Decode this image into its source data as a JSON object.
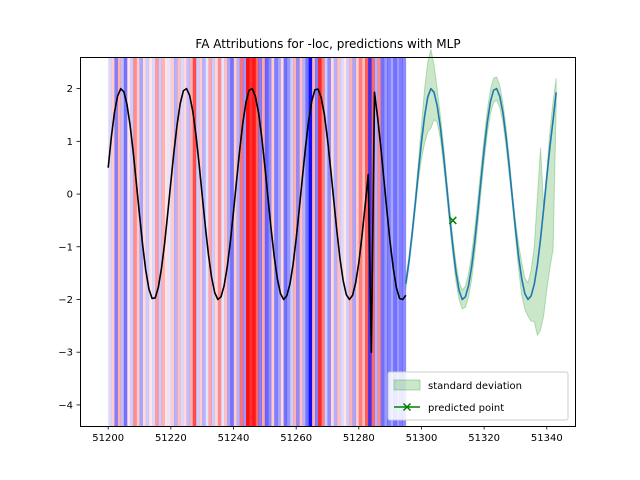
{
  "colors": {
    "attribution_positive": "#ff0000",
    "attribution_negative": "#0000ff",
    "signal": "#000000",
    "prediction": "#1f77b4",
    "std_band": "#2ca02c",
    "predicted_point": "#008000"
  },
  "chart_data": {
    "type": "line",
    "title": "FA Attributions for -loc, predictions with MLP",
    "xlabel": "",
    "ylabel": "",
    "xlim": [
      51191,
      51349
    ],
    "ylim": [
      -4.4,
      2.6
    ],
    "xticks": [
      51200,
      51220,
      51240,
      51260,
      51280,
      51300,
      51320,
      51340
    ],
    "yticks": [
      2,
      1,
      0,
      -1,
      -2,
      -3,
      -4
    ],
    "xtick_labels": [
      "51200",
      "51220",
      "51240",
      "51260",
      "51280",
      "51300",
      "51320",
      "51340"
    ],
    "ytick_labels": [
      "2",
      "1",
      "0",
      "−1",
      "−2",
      "−3",
      "−4"
    ],
    "grid": false,
    "legend_position": "lower right",
    "legend_entries": [
      "standard deviation",
      "predicted point"
    ],
    "attribution_range": [
      51200,
      51295
    ],
    "attributions": [
      {
        "x": 51200,
        "v": -0.15
      },
      {
        "x": 51201,
        "v": 0.2
      },
      {
        "x": 51202,
        "v": -0.5
      },
      {
        "x": 51203,
        "v": 0.3
      },
      {
        "x": 51204,
        "v": -0.25
      },
      {
        "x": 51205,
        "v": -0.55
      },
      {
        "x": 51206,
        "v": 0.1
      },
      {
        "x": 51207,
        "v": -0.2
      },
      {
        "x": 51208,
        "v": 0.45
      },
      {
        "x": 51209,
        "v": 0.2
      },
      {
        "x": 51210,
        "v": -0.35
      },
      {
        "x": 51211,
        "v": 0.15
      },
      {
        "x": 51212,
        "v": -0.2
      },
      {
        "x": 51213,
        "v": 0.1
      },
      {
        "x": 51214,
        "v": -0.15
      },
      {
        "x": 51215,
        "v": 0.4
      },
      {
        "x": 51216,
        "v": -0.2
      },
      {
        "x": 51217,
        "v": 0.3
      },
      {
        "x": 51218,
        "v": 0.1
      },
      {
        "x": 51219,
        "v": -0.1
      },
      {
        "x": 51220,
        "v": 0.2
      },
      {
        "x": 51221,
        "v": -0.3
      },
      {
        "x": 51222,
        "v": 0.25
      },
      {
        "x": 51223,
        "v": -0.15
      },
      {
        "x": 51224,
        "v": 0.15
      },
      {
        "x": 51225,
        "v": -0.25
      },
      {
        "x": 51226,
        "v": 0.3
      },
      {
        "x": 51227,
        "v": 0.7
      },
      {
        "x": 51228,
        "v": -0.2
      },
      {
        "x": 51229,
        "v": 0.2
      },
      {
        "x": 51230,
        "v": -0.3
      },
      {
        "x": 51231,
        "v": -0.1
      },
      {
        "x": 51232,
        "v": 0.35
      },
      {
        "x": 51233,
        "v": -0.2
      },
      {
        "x": 51234,
        "v": 0.15
      },
      {
        "x": 51235,
        "v": 0.45
      },
      {
        "x": 51236,
        "v": -0.1
      },
      {
        "x": 51237,
        "v": 0.25
      },
      {
        "x": 51238,
        "v": -0.35
      },
      {
        "x": 51239,
        "v": -0.55
      },
      {
        "x": 51240,
        "v": 0.2
      },
      {
        "x": 51241,
        "v": -0.3
      },
      {
        "x": 51242,
        "v": 0.55
      },
      {
        "x": 51243,
        "v": -0.4
      },
      {
        "x": 51244,
        "v": 0.95
      },
      {
        "x": 51245,
        "v": 0.8
      },
      {
        "x": 51246,
        "v": 0.9
      },
      {
        "x": 51247,
        "v": 0.6
      },
      {
        "x": 51248,
        "v": -0.5
      },
      {
        "x": 51249,
        "v": 0.35
      },
      {
        "x": 51250,
        "v": -0.6
      },
      {
        "x": 51251,
        "v": -0.45
      },
      {
        "x": 51252,
        "v": 0.2
      },
      {
        "x": 51253,
        "v": -0.5
      },
      {
        "x": 51254,
        "v": -0.35
      },
      {
        "x": 51255,
        "v": 0.15
      },
      {
        "x": 51256,
        "v": -0.55
      },
      {
        "x": 51257,
        "v": -0.4
      },
      {
        "x": 51258,
        "v": -0.2
      },
      {
        "x": 51259,
        "v": 0.3
      },
      {
        "x": 51260,
        "v": -0.45
      },
      {
        "x": 51261,
        "v": 0.25
      },
      {
        "x": 51262,
        "v": -0.3
      },
      {
        "x": 51263,
        "v": -0.55
      },
      {
        "x": 51264,
        "v": -0.95
      },
      {
        "x": 51265,
        "v": 0.3
      },
      {
        "x": 51266,
        "v": -0.5
      },
      {
        "x": 51267,
        "v": 0.85
      },
      {
        "x": 51268,
        "v": 0.5
      },
      {
        "x": 51269,
        "v": -0.2
      },
      {
        "x": 51270,
        "v": -0.45
      },
      {
        "x": 51271,
        "v": 0.15
      },
      {
        "x": 51272,
        "v": -0.3
      },
      {
        "x": 51273,
        "v": 0.25
      },
      {
        "x": 51274,
        "v": -0.15
      },
      {
        "x": 51275,
        "v": 0.1
      },
      {
        "x": 51276,
        "v": -0.2
      },
      {
        "x": 51277,
        "v": 0.3
      },
      {
        "x": 51278,
        "v": -0.35
      },
      {
        "x": 51279,
        "v": 0.2
      },
      {
        "x": 51280,
        "v": 0.5
      },
      {
        "x": 51281,
        "v": 0.25
      },
      {
        "x": 51282,
        "v": 0.65
      },
      {
        "x": 51283,
        "v": -0.8
      },
      {
        "x": 51284,
        "v": 0.6
      },
      {
        "x": 51285,
        "v": -0.3
      },
      {
        "x": 51286,
        "v": 0.45
      },
      {
        "x": 51287,
        "v": -0.55
      },
      {
        "x": 51288,
        "v": -0.4
      },
      {
        "x": 51289,
        "v": -0.5
      },
      {
        "x": 51290,
        "v": -0.35
      },
      {
        "x": 51291,
        "v": -0.55
      },
      {
        "x": 51292,
        "v": -0.4
      },
      {
        "x": 51293,
        "v": -0.5
      },
      {
        "x": 51294,
        "v": -0.45
      }
    ],
    "signal": {
      "x": [
        51200,
        51201,
        51202,
        51203,
        51204,
        51205,
        51206,
        51207,
        51208,
        51209,
        51210,
        51211,
        51212,
        51213,
        51214,
        51215,
        51216,
        51217,
        51218,
        51219,
        51220,
        51221,
        51222,
        51223,
        51224,
        51225,
        51226,
        51227,
        51228,
        51229,
        51230,
        51231,
        51232,
        51233,
        51234,
        51235,
        51236,
        51237,
        51238,
        51239,
        51240,
        51241,
        51242,
        51243,
        51244,
        51245,
        51246,
        51247,
        51248,
        51249,
        51250,
        51251,
        51252,
        51253,
        51254,
        51255,
        51256,
        51257,
        51258,
        51259,
        51260,
        51261,
        51262,
        51263,
        51264,
        51265,
        51266,
        51267,
        51268,
        51269,
        51270,
        51271,
        51272,
        51273,
        51274,
        51275,
        51276,
        51277,
        51278,
        51279,
        51280,
        51281,
        51282,
        51283,
        51284,
        51285,
        51286,
        51287,
        51288,
        51289,
        51290,
        51291,
        51292,
        51293,
        51294,
        51295
      ],
      "y": [
        0.5,
        1.08,
        1.55,
        1.86,
        2.0,
        1.94,
        1.7,
        1.3,
        0.79,
        0.2,
        -0.4,
        -0.97,
        -1.45,
        -1.8,
        -1.98,
        -1.97,
        -1.77,
        -1.41,
        -0.94,
        -0.37,
        0.23,
        0.81,
        1.32,
        1.72,
        1.96,
        2.0,
        1.87,
        1.57,
        1.13,
        0.58,
        -0.02,
        -0.61,
        -1.15,
        -1.58,
        -1.87,
        -2.0,
        -1.95,
        -1.74,
        -1.38,
        -0.9,
        -0.33,
        0.27,
        0.85,
        1.36,
        1.75,
        1.97,
        2.0,
        1.85,
        1.54,
        1.08,
        0.53,
        -0.07,
        -0.66,
        -1.19,
        -1.61,
        -1.89,
        -2.0,
        -1.93,
        -1.71,
        -1.34,
        -0.85,
        -0.28,
        0.32,
        0.9,
        1.4,
        1.77,
        1.98,
        1.99,
        1.83,
        1.51,
        1.04,
        0.48,
        -0.12,
        -0.71,
        -1.23,
        -1.64,
        -1.91,
        -2.0,
        -1.92,
        -1.68,
        -1.3,
        -0.8,
        -0.23,
        0.37,
        -3.0,
        1.93,
        1.45,
        0.9,
        0.28,
        -0.34,
        -0.92,
        -1.41,
        -1.78,
        -1.98,
        -2.0,
        -1.92
      ]
    },
    "prediction": {
      "x": [
        51295,
        51296,
        51297,
        51298,
        51299,
        51300,
        51301,
        51302,
        51303,
        51304,
        51305,
        51306,
        51307,
        51308,
        51309,
        51310,
        51311,
        51312,
        51313,
        51314,
        51315,
        51316,
        51317,
        51318,
        51319,
        51320,
        51321,
        51322,
        51323,
        51324,
        51325,
        51326,
        51327,
        51328,
        51329,
        51330,
        51331,
        51332,
        51333,
        51334,
        51335,
        51336,
        51337,
        51338,
        51339,
        51340,
        51341,
        51342,
        51343
      ],
      "y": [
        -1.7,
        -1.28,
        -0.76,
        -0.19,
        0.42,
        0.99,
        1.48,
        1.84,
        2.0,
        1.93,
        1.68,
        1.28,
        0.76,
        0.17,
        -0.43,
        -0.99,
        -1.48,
        -1.83,
        -2.0,
        -1.95,
        -1.74,
        -1.38,
        -0.9,
        -0.33,
        0.27,
        0.85,
        1.36,
        1.75,
        1.97,
        2.0,
        1.85,
        1.54,
        1.08,
        0.53,
        -0.07,
        -0.66,
        -1.19,
        -1.61,
        -1.89,
        -2.0,
        -1.93,
        -1.71,
        -1.34,
        -0.85,
        -0.28,
        0.32,
        0.9,
        1.4,
        1.93
      ],
      "std_upper": [
        -1.6,
        -1.18,
        -0.66,
        -0.07,
        0.6,
        1.3,
        2.0,
        2.5,
        2.75,
        2.45,
        2.0,
        1.5,
        0.95,
        0.33,
        -0.28,
        -0.82,
        -1.3,
        -1.66,
        -1.82,
        -1.75,
        -1.52,
        -1.14,
        -0.66,
        -0.09,
        0.5,
        1.07,
        1.58,
        1.98,
        2.2,
        2.22,
        2.06,
        1.72,
        1.26,
        0.7,
        0.05,
        -0.5,
        -0.95,
        -1.3,
        -1.6,
        -1.68,
        -1.45,
        -1.0,
        -0.05,
        0.88,
        -0.25,
        0.45,
        1.2,
        1.75,
        2.2
      ],
      "std_lower": [
        -1.8,
        -1.38,
        -0.86,
        -0.31,
        0.24,
        0.68,
        0.96,
        1.18,
        1.25,
        1.41,
        1.36,
        1.06,
        0.57,
        0.01,
        -0.58,
        -1.16,
        -1.66,
        -2.0,
        -2.18,
        -2.15,
        -1.96,
        -1.62,
        -1.14,
        -0.57,
        0.04,
        0.63,
        1.14,
        1.52,
        1.74,
        1.78,
        1.64,
        1.36,
        0.9,
        0.36,
        -0.19,
        -0.82,
        -1.43,
        -1.92,
        -2.18,
        -2.32,
        -2.41,
        -2.42,
        -2.68,
        -2.58,
        -2.31,
        -1.81,
        -1.4,
        -1.05,
        1.66
      ]
    },
    "predicted_point": {
      "x": 51310,
      "y": -0.5
    }
  }
}
